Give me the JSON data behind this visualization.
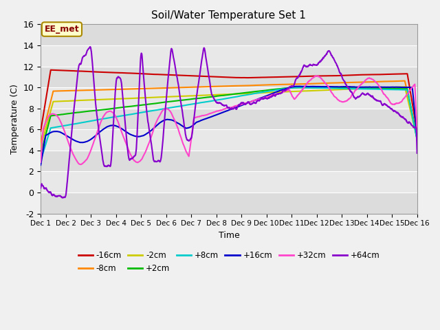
{
  "title": "Soil/Water Temperature Set 1",
  "xlabel": "Time",
  "ylabel": "Temperature (C)",
  "xlim": [
    0,
    15
  ],
  "ylim": [
    -2,
    16
  ],
  "yticks": [
    -2,
    0,
    2,
    4,
    6,
    8,
    10,
    12,
    14,
    16
  ],
  "xtick_labels": [
    "Dec 1",
    "Dec 2",
    "Dec 3",
    "Dec 4",
    "Dec 5",
    "Dec 6",
    "Dec 7",
    "Dec 8",
    "Dec 9",
    "Dec 10",
    "Dec 11",
    "Dec 12",
    "Dec 13",
    "Dec 14",
    "Dec 15",
    "Dec 16"
  ],
  "annotation_text": "EE_met",
  "background_color": "#f0f0f0",
  "plot_bg_color": "#e8e8e8",
  "band_colors": [
    "#e0e0e0",
    "#ebebeb"
  ],
  "series": [
    {
      "label": "-16cm",
      "color": "#cc0000",
      "lw": 1.5
    },
    {
      "label": "-8cm",
      "color": "#ff8800",
      "lw": 1.5
    },
    {
      "label": "-2cm",
      "color": "#cccc00",
      "lw": 1.5
    },
    {
      "label": "+2cm",
      "color": "#00bb00",
      "lw": 1.5
    },
    {
      "label": "+8cm",
      "color": "#00cccc",
      "lw": 1.5
    },
    {
      "label": "+16cm",
      "color": "#0000cc",
      "lw": 1.5
    },
    {
      "label": "+32cm",
      "color": "#ff44cc",
      "lw": 1.5
    },
    {
      "label": "+64cm",
      "color": "#8800cc",
      "lw": 1.5
    }
  ]
}
